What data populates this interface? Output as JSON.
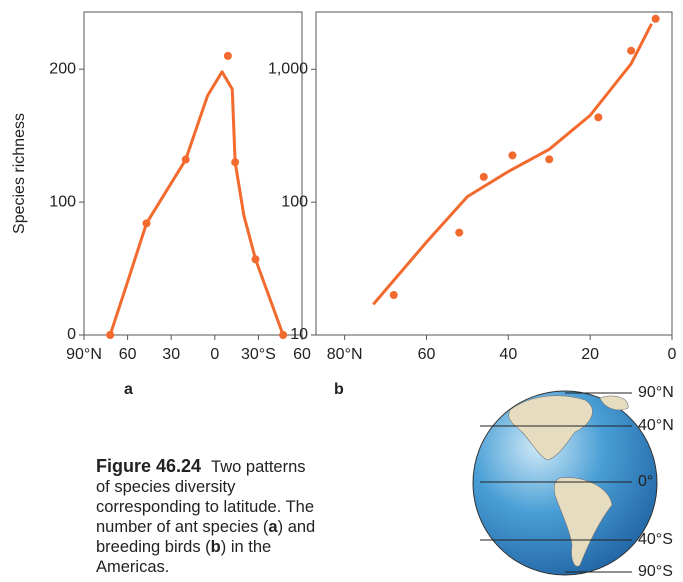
{
  "chart_data": [
    {
      "type": "scatter",
      "panel_label": "a",
      "y_label": "Species richness",
      "color": "#f26a2e",
      "x": [
        -72,
        -47,
        -20,
        9,
        14,
        28,
        47
      ],
      "values": [
        0,
        84,
        132,
        210,
        130,
        57,
        0
      ],
      "curve_x": [
        -72,
        -60,
        -47,
        -20,
        -5,
        5,
        12,
        14,
        20,
        28,
        47
      ],
      "curve_values": [
        0,
        40,
        84,
        132,
        180,
        198,
        185,
        130,
        90,
        57,
        0
      ],
      "xlim": [
        -90,
        60
      ],
      "xticks": [
        {
          "value": -90,
          "label": "90°N"
        },
        {
          "value": -60,
          "label": "60"
        },
        {
          "value": -30,
          "label": "30"
        },
        0,
        {
          "value": 30,
          "label": "30°S"
        },
        60
      ],
      "ylim": [
        0,
        243
      ],
      "yticks": [
        0,
        100,
        200
      ],
      "log_y": false
    },
    {
      "type": "scatter",
      "panel_label": "b",
      "color": "#f26a2e",
      "x": [
        68,
        52,
        46,
        39,
        30,
        18,
        10,
        4
      ],
      "values": [
        20,
        59,
        155,
        225,
        210,
        435,
        1380,
        2400
      ],
      "curve_x": [
        73,
        60,
        50,
        40,
        30,
        20,
        10,
        5
      ],
      "curve_values": [
        17,
        50,
        110,
        170,
        250,
        450,
        1100,
        2200
      ],
      "xlim": [
        87,
        0
      ],
      "xticks": [
        {
          "value": 80,
          "label": "80°N"
        },
        60,
        40,
        20,
        0
      ],
      "ylim": [
        10,
        2700
      ],
      "yticks": [
        10,
        100,
        {
          "value": 1000,
          "label": "1,000"
        }
      ],
      "log_y": true
    }
  ],
  "caption": {
    "label": "Figure 46.24",
    "segments": [
      "Two patterns of species diversity corresponding to latitude. The number of ant species (",
      "a",
      ") and breeding birds (",
      "b",
      ") in the Americas."
    ]
  },
  "globe": {
    "labels": [
      "90°N",
      "40°N",
      "0°",
      "40°S",
      "90°S"
    ]
  }
}
